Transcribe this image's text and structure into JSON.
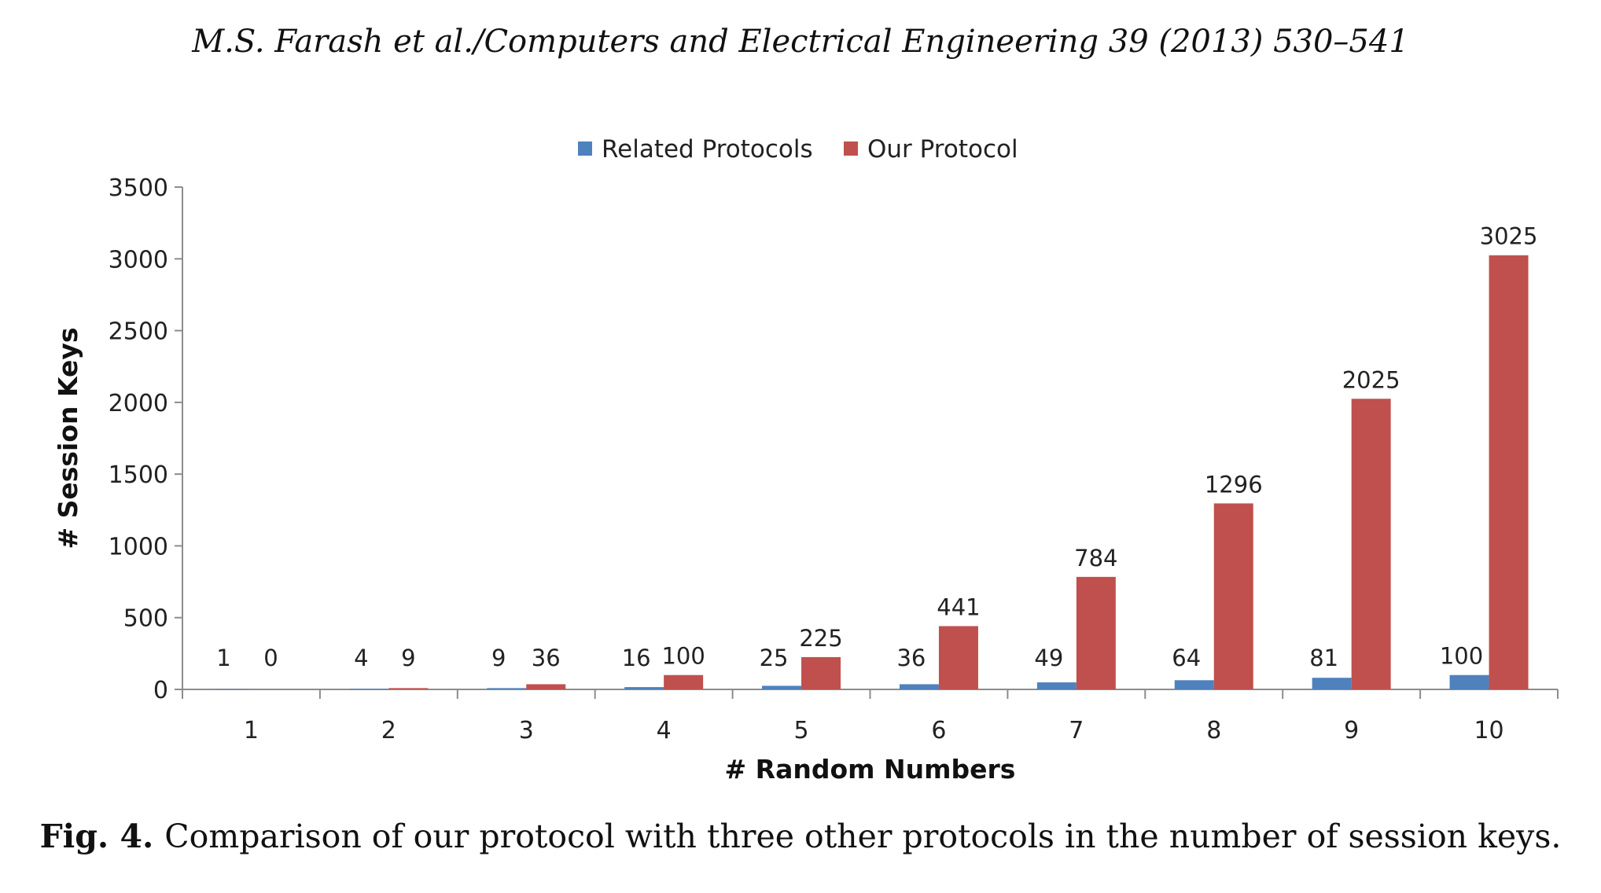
{
  "header": "M.S. Farash et al./Computers and Electrical Engineering 39 (2013) 530–541",
  "caption": {
    "label": "Fig. 4.",
    "text": "Comparison of our protocol with three other protocols in the number of session keys."
  },
  "colors": {
    "related": "#4f81bd",
    "ours": "#c0504d",
    "axis": "#8c8c8c"
  },
  "chart_data": {
    "type": "bar",
    "title": "",
    "xlabel": "# Random Numbers",
    "ylabel": "# Session Keys",
    "categories": [
      "1",
      "2",
      "3",
      "4",
      "5",
      "6",
      "7",
      "8",
      "9",
      "10"
    ],
    "series": [
      {
        "name": "Related Protocols",
        "values": [
          1,
          4,
          9,
          16,
          25,
          36,
          49,
          64,
          81,
          100
        ]
      },
      {
        "name": "Our Protocol",
        "values": [
          0,
          9,
          36,
          100,
          225,
          441,
          784,
          1296,
          2025,
          3025
        ]
      }
    ],
    "ylim": [
      0,
      3500
    ],
    "yticks": [
      0,
      500,
      1000,
      1500,
      2000,
      2500,
      3000,
      3500
    ],
    "grid": false,
    "legend": "top-center",
    "data_labels": true
  }
}
